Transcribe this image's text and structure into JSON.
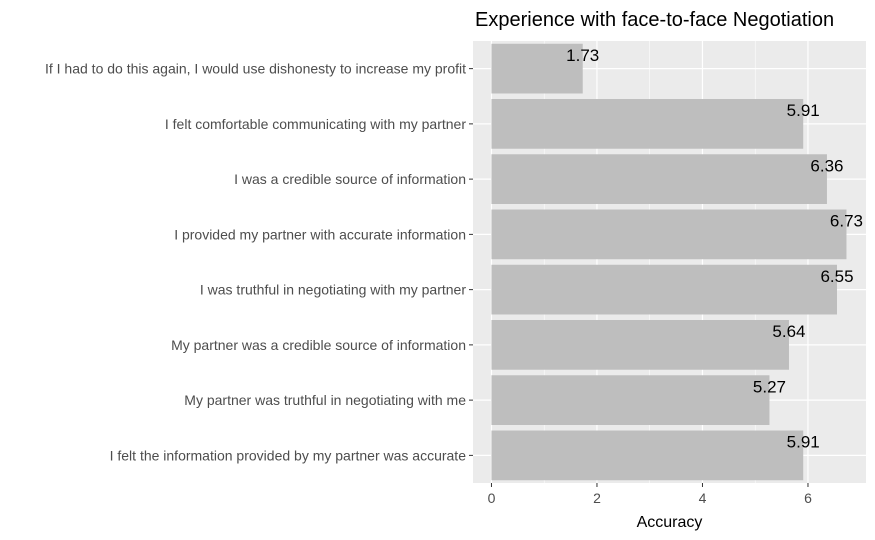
{
  "chart_data": {
    "type": "bar",
    "orientation": "horizontal",
    "title": "Experience with face-to-face Negotiation",
    "xlabel": "Accuracy",
    "ylabel": "",
    "categories": [
      "If I had to do this again, I would use dishonesty to increase my profit",
      "I felt comfortable communicating with my partner",
      "I was a credible source of information",
      "I provided my partner with accurate information",
      "I was truthful in negotiating with my partner",
      "My partner was a credible source of information",
      "My partner was truthful in negotiating with me",
      "I felt the information provided by my partner was accurate"
    ],
    "values": [
      1.73,
      5.91,
      6.36,
      6.73,
      6.55,
      5.64,
      5.27,
      5.91
    ],
    "value_labels": [
      "1.73",
      "5.91",
      "6.36",
      "6.73",
      "6.55",
      "5.64",
      "5.27",
      "5.91"
    ],
    "xlim": [
      -0.35,
      7.1
    ],
    "xticks": [
      0,
      2,
      4,
      6
    ],
    "xtick_labels": [
      "0",
      "2",
      "4",
      "6"
    ],
    "grid": true,
    "colors": {
      "panel_background": "#ebebeb",
      "grid_major": "#ffffff",
      "bar_fill": "#bebebe",
      "tick_color": "#333333"
    }
  }
}
